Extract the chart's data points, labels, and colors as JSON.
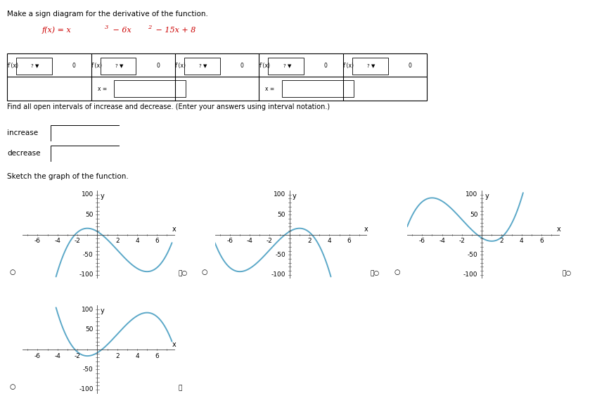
{
  "title": "Make a sign diagram for the derivative of the function.",
  "formula_parts": [
    "f(x) = x",
    "3",
    " − 6x",
    "2",
    " − 15x + 8"
  ],
  "formula_color": "#cc0000",
  "intervals_text": "Find all open intervals of increase and decrease. (Enter your answers using interval notation.)",
  "sketch_text": "Sketch the graph of the function.",
  "x_range": [
    -7.5,
    7.8
  ],
  "y_range": [
    -110,
    110
  ],
  "tick_fontsize": 6.5,
  "curve_color": "#5ba8c8",
  "curve_linewidth": 1.4,
  "background_color": "#ffffff",
  "graph_configs": [
    {
      "a": 1,
      "b": -6,
      "c": -15,
      "d": 8
    },
    {
      "a": -1,
      "b": -6,
      "c": 15,
      "d": 8
    },
    {
      "a": 1,
      "b": 6,
      "c": -15,
      "d": -8
    },
    {
      "a": -1,
      "b": 6,
      "c": 15,
      "d": -8
    }
  ],
  "col_labels": [
    "f′(x)",
    "f′(x)",
    "f′(x)",
    "f′(x)",
    "f′(x)"
  ],
  "xticks": [
    -6,
    -4,
    -2,
    2,
    4,
    6
  ],
  "yticks": [
    -100,
    -50,
    50,
    100
  ]
}
